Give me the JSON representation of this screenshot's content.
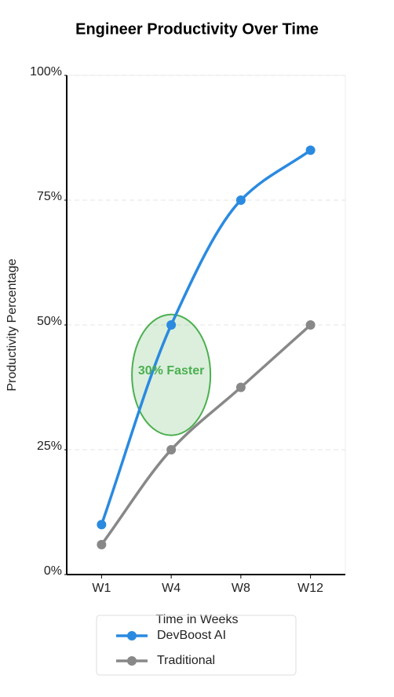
{
  "chart_data": {
    "type": "line",
    "title": "Engineer Productivity Over Time",
    "x_label": "Time in Weeks",
    "y_label": "Productivity Percentage",
    "categories": [
      "W1",
      "W4",
      "W8",
      "W12"
    ],
    "series": [
      {
        "name": "DevBoost AI",
        "color": "#2a8ae0",
        "values": [
          10,
          50,
          75,
          85
        ]
      },
      {
        "name": "Traditional",
        "color": "#888888",
        "values": [
          6,
          25,
          37.5,
          50
        ]
      }
    ],
    "ylim": [
      0,
      100
    ],
    "yticks": [
      {
        "value": 0,
        "label": "0%"
      },
      {
        "value": 25,
        "label": "25%"
      },
      {
        "value": 50,
        "label": "50%"
      },
      {
        "value": 75,
        "label": "75%"
      },
      {
        "value": 100,
        "label": "100%"
      }
    ],
    "grid": true,
    "legend": "bottom",
    "annotation": {
      "text": "30% Faster",
      "x": "W4",
      "y": 40,
      "color": "#4caf50"
    }
  }
}
